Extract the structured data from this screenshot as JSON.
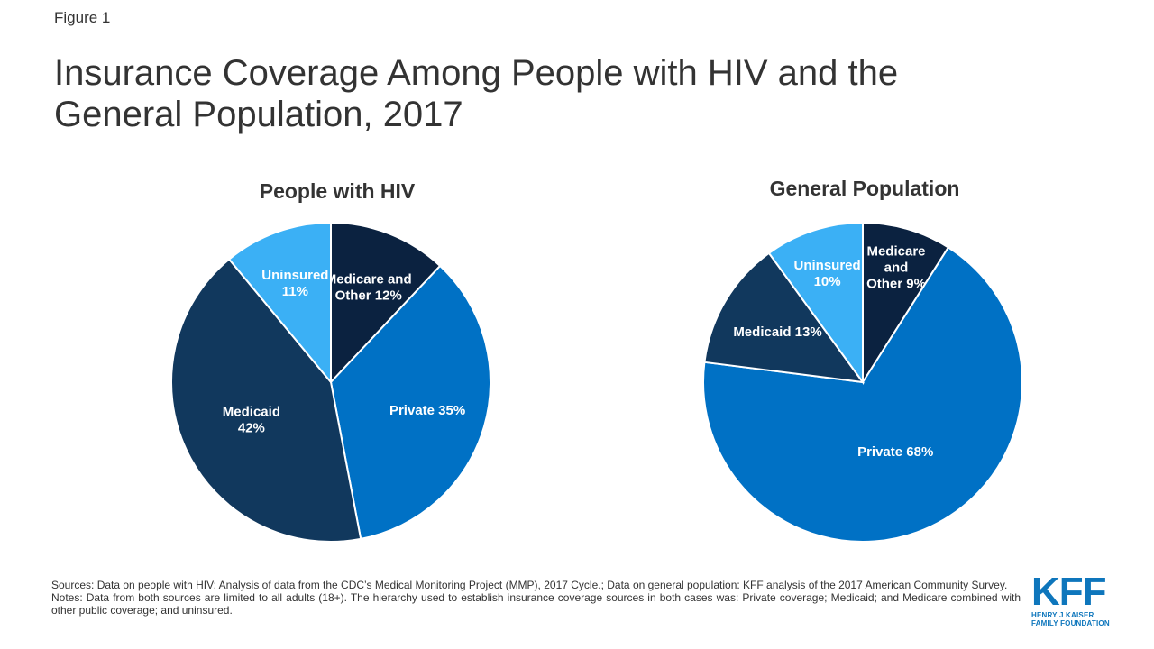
{
  "figure_label": "Figure 1",
  "title_line1": "Insurance Coverage Among People with HIV and the",
  "title_line2": "General Population, 2017",
  "chart_data": [
    {
      "type": "pie",
      "title": "People with HIV",
      "unit": "%",
      "slices": [
        {
          "name": "Medicare and Other",
          "value": 12,
          "color": "#0b2240",
          "label_lines": [
            "Medicare and",
            "Other 12%"
          ]
        },
        {
          "name": "Private",
          "value": 35,
          "color": "#0071c5",
          "label_lines": [
            "Private 35%"
          ]
        },
        {
          "name": "Medicaid",
          "value": 42,
          "color": "#11385d",
          "label_lines": [
            "Medicaid",
            "42%"
          ]
        },
        {
          "name": "Uninsured",
          "value": 11,
          "color": "#3bb0f5",
          "label_lines": [
            "Uninsured",
            "11%"
          ]
        }
      ]
    },
    {
      "type": "pie",
      "title": "General Population",
      "unit": "%",
      "slices": [
        {
          "name": "Medicare and Other",
          "value": 9,
          "color": "#0b2240",
          "label_lines": [
            "Medicare",
            "and",
            "Other 9%"
          ]
        },
        {
          "name": "Private",
          "value": 68,
          "color": "#0071c5",
          "label_lines": [
            "Private 68%"
          ]
        },
        {
          "name": "Medicaid",
          "value": 13,
          "color": "#11385d",
          "label_lines": [
            "Medicaid 13%"
          ]
        },
        {
          "name": "Uninsured",
          "value": 10,
          "color": "#3bb0f5",
          "label_lines": [
            "Uninsured",
            "10%"
          ]
        }
      ]
    }
  ],
  "footnotes": {
    "sources": "Sources: Data on people with HIV: Analysis of data from the CDC’s Medical Monitoring Project (MMP), 2017 Cycle.; Data on general population: KFF analysis of the 2017 American Community Survey.",
    "notes": "Notes: Data from both sources are limited to all adults (18+). The hierarchy used to establish insurance coverage sources in both cases was: Private coverage; Medicaid; and Medicare combined with other public coverage; and uninsured."
  },
  "logo": {
    "main": "KFF",
    "sub_line1": "HENRY J KAISER",
    "sub_line2": "FAMILY FOUNDATION"
  }
}
